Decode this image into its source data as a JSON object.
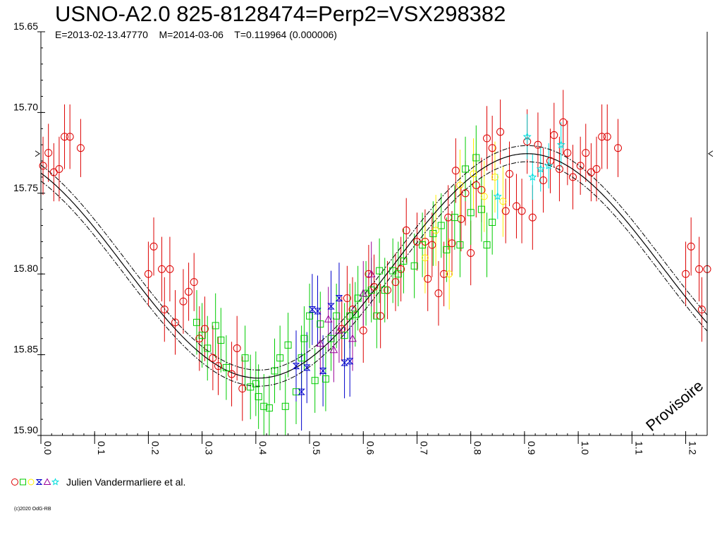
{
  "chart_data": {
    "type": "scatter",
    "title": "USNO-A2.0 825-8128474=Perp2=VSX298382",
    "subtitle": "E=2013-02-13.47770    M=2014-03-06    T=0.119964 (0.000006)",
    "xlim": [
      0.0,
      1.24
    ],
    "ylim": [
      15.65,
      15.9
    ],
    "y_inverted": true,
    "x_ticks": [
      "0.0",
      "0.1",
      "0.2",
      "0.3",
      "0.4",
      "0.5",
      "0.6",
      "0.7",
      "0.8",
      "0.9",
      "1.0",
      "1.1",
      "1.2"
    ],
    "y_ticks": [
      "15.65",
      "15.70",
      "15.75",
      "15.80",
      "15.85",
      "15.90"
    ],
    "grid": false,
    "fit_curve": {
      "mean": 15.795,
      "amplitude": 0.0695,
      "phase_of_minimum": 0.405,
      "band": 0.005
    },
    "watermark": "Provisoire",
    "legend_label": "Julien Vandermarliere et al.",
    "legend_symbols": [
      "circle",
      "square",
      "diamond",
      "hourglass",
      "triangle",
      "star"
    ],
    "copyright": "(c)2020 OdG-RB",
    "series": [
      {
        "symbol": "circle",
        "color": "#dd0000",
        "points": [
          [
            0.004,
            15.733,
            0.018
          ],
          [
            0.014,
            15.725,
            0.018
          ],
          [
            0.024,
            15.737,
            0.018
          ],
          [
            0.034,
            15.735,
            0.02
          ],
          [
            0.044,
            15.715,
            0.02
          ],
          [
            0.054,
            15.715,
            0.02
          ],
          [
            0.074,
            15.722,
            0.018
          ],
          [
            0.2,
            15.8,
            0.02
          ],
          [
            0.21,
            15.783,
            0.018
          ],
          [
            0.225,
            15.797,
            0.02
          ],
          [
            0.23,
            15.822,
            0.02
          ],
          [
            0.24,
            15.797,
            0.02
          ],
          [
            0.25,
            15.83,
            0.02
          ],
          [
            0.265,
            15.817,
            0.02
          ],
          [
            0.275,
            15.811,
            0.018
          ],
          [
            0.285,
            15.805,
            0.018
          ],
          [
            0.295,
            15.84,
            0.02
          ],
          [
            0.305,
            15.834,
            0.02
          ],
          [
            0.32,
            15.852,
            0.02
          ],
          [
            0.33,
            15.857,
            0.018
          ],
          [
            0.355,
            15.862,
            0.02
          ],
          [
            0.365,
            15.846,
            0.02
          ],
          [
            0.375,
            15.871,
            0.02
          ],
          [
            0.56,
            15.834,
            0.02
          ],
          [
            0.57,
            15.815,
            0.02
          ],
          [
            0.58,
            15.822,
            0.02
          ],
          [
            0.6,
            15.835,
            0.02
          ],
          [
            0.61,
            15.8,
            0.018
          ],
          [
            0.62,
            15.808,
            0.02
          ],
          [
            0.632,
            15.826,
            0.02
          ],
          [
            0.645,
            15.81,
            0.018
          ],
          [
            0.66,
            15.805,
            0.018
          ],
          [
            0.67,
            15.797,
            0.02
          ],
          [
            0.68,
            15.773,
            0.02
          ],
          [
            0.7,
            15.78,
            0.018
          ],
          [
            0.715,
            15.78,
            0.02
          ],
          [
            0.72,
            15.803,
            0.02
          ],
          [
            0.728,
            15.782,
            0.02
          ],
          [
            0.74,
            15.812,
            0.02
          ],
          [
            0.75,
            15.8,
            0.02
          ],
          [
            0.758,
            15.765,
            0.02
          ],
          [
            0.765,
            15.781,
            0.02
          ],
          [
            0.772,
            15.736,
            0.02
          ],
          [
            0.782,
            15.766,
            0.02
          ],
          [
            0.79,
            15.75,
            0.02
          ],
          [
            0.8,
            15.787,
            0.02
          ],
          [
            0.81,
            15.745,
            0.02
          ],
          [
            0.82,
            15.748,
            0.02
          ],
          [
            0.83,
            15.716,
            0.02
          ],
          [
            0.84,
            15.722,
            0.02
          ],
          [
            0.855,
            15.712,
            0.02
          ],
          [
            0.865,
            15.761,
            0.02
          ],
          [
            0.872,
            15.738,
            0.02
          ],
          [
            0.885,
            15.758,
            0.02
          ],
          [
            0.895,
            15.761,
            0.02
          ],
          [
            0.905,
            15.718,
            0.02
          ],
          [
            0.915,
            15.765,
            0.02
          ],
          [
            0.925,
            15.72,
            0.02
          ],
          [
            0.935,
            15.742,
            0.02
          ],
          [
            0.948,
            15.73,
            0.02
          ],
          [
            0.955,
            15.714,
            0.02
          ],
          [
            0.965,
            15.735,
            0.02
          ],
          [
            0.972,
            15.706,
            0.02
          ],
          [
            0.98,
            15.725,
            0.02
          ],
          [
            0.99,
            15.74,
            0.02
          ],
          [
            1.004,
            15.733,
            0.018
          ],
          [
            1.014,
            15.725,
            0.018
          ],
          [
            1.024,
            15.737,
            0.018
          ],
          [
            1.034,
            15.735,
            0.02
          ],
          [
            1.044,
            15.715,
            0.02
          ],
          [
            1.054,
            15.715,
            0.02
          ],
          [
            1.074,
            15.722,
            0.018
          ],
          [
            1.2,
            15.8,
            0.02
          ],
          [
            1.21,
            15.783,
            0.018
          ],
          [
            1.225,
            15.797,
            0.02
          ],
          [
            1.23,
            15.822,
            0.02
          ],
          [
            1.24,
            15.797,
            0.02
          ]
        ]
      },
      {
        "symbol": "square",
        "color": "#00cc00",
        "points": [
          [
            0.29,
            15.83,
            0.02
          ],
          [
            0.3,
            15.838,
            0.02
          ],
          [
            0.31,
            15.846,
            0.02
          ],
          [
            0.325,
            15.832,
            0.02
          ],
          [
            0.335,
            15.841,
            0.02
          ],
          [
            0.345,
            15.858,
            0.02
          ],
          [
            0.38,
            15.852,
            0.02
          ],
          [
            0.39,
            15.87,
            0.02
          ],
          [
            0.4,
            15.868,
            0.02
          ],
          [
            0.405,
            15.876,
            0.02
          ],
          [
            0.415,
            15.882,
            0.02
          ],
          [
            0.425,
            15.883,
            0.02
          ],
          [
            0.435,
            15.86,
            0.02
          ],
          [
            0.445,
            15.852,
            0.02
          ],
          [
            0.455,
            15.882,
            0.02
          ],
          [
            0.46,
            15.844,
            0.02
          ],
          [
            0.475,
            15.873,
            0.02
          ],
          [
            0.485,
            15.852,
            0.02
          ],
          [
            0.49,
            15.84,
            0.02
          ],
          [
            0.5,
            15.826,
            0.02
          ],
          [
            0.51,
            15.866,
            0.02
          ],
          [
            0.52,
            15.831,
            0.02
          ],
          [
            0.53,
            15.865,
            0.02
          ],
          [
            0.54,
            15.84,
            0.02
          ],
          [
            0.55,
            15.826,
            0.02
          ],
          [
            0.565,
            15.838,
            0.02
          ],
          [
            0.575,
            15.826,
            0.02
          ],
          [
            0.585,
            15.825,
            0.02
          ],
          [
            0.59,
            15.815,
            0.02
          ],
          [
            0.605,
            15.812,
            0.02
          ],
          [
            0.615,
            15.81,
            0.02
          ],
          [
            0.625,
            15.826,
            0.02
          ],
          [
            0.63,
            15.798,
            0.02
          ],
          [
            0.64,
            15.81,
            0.02
          ],
          [
            0.655,
            15.798,
            0.02
          ],
          [
            0.665,
            15.8,
            0.02
          ],
          [
            0.675,
            15.792,
            0.02
          ],
          [
            0.695,
            15.795,
            0.02
          ],
          [
            0.71,
            15.782,
            0.02
          ],
          [
            0.73,
            15.775,
            0.02
          ],
          [
            0.745,
            15.77,
            0.02
          ],
          [
            0.755,
            15.785,
            0.02
          ],
          [
            0.77,
            15.765,
            0.02
          ],
          [
            0.78,
            15.782,
            0.02
          ],
          [
            0.79,
            15.735,
            0.02
          ],
          [
            0.8,
            15.762,
            0.02
          ],
          [
            0.81,
            15.728,
            0.02
          ],
          [
            0.82,
            15.76,
            0.02
          ],
          [
            0.83,
            15.782,
            0.02
          ],
          [
            0.84,
            15.768,
            0.02
          ]
        ]
      },
      {
        "symbol": "diamond",
        "color": "#ffee00",
        "points": [
          [
            0.715,
            15.79,
            0.022
          ],
          [
            0.735,
            15.773,
            0.022
          ],
          [
            0.76,
            15.8,
            0.022
          ],
          [
            0.78,
            15.745,
            0.022
          ],
          [
            0.805,
            15.738,
            0.022
          ],
          [
            0.825,
            15.752,
            0.022
          ],
          [
            0.845,
            15.74,
            0.022
          ],
          [
            0.86,
            15.755,
            0.022
          ]
        ]
      },
      {
        "symbol": "hourglass",
        "color": "#0000cc",
        "points": [
          [
            0.475,
            15.857,
            0.022
          ],
          [
            0.485,
            15.873,
            0.024
          ],
          [
            0.495,
            15.858,
            0.022
          ],
          [
            0.505,
            15.822,
            0.022
          ],
          [
            0.515,
            15.823,
            0.022
          ],
          [
            0.525,
            15.86,
            0.022
          ],
          [
            0.54,
            15.82,
            0.022
          ],
          [
            0.555,
            15.815,
            0.022
          ],
          [
            0.565,
            15.855,
            0.022
          ],
          [
            0.575,
            15.854,
            0.022
          ]
        ]
      },
      {
        "symbol": "triangle",
        "color": "#990099",
        "points": [
          [
            0.52,
            15.843,
            0.02
          ],
          [
            0.535,
            15.828,
            0.02
          ],
          [
            0.545,
            15.847,
            0.02
          ],
          [
            0.555,
            15.835,
            0.02
          ],
          [
            0.58,
            15.84,
            0.02
          ],
          [
            0.6,
            15.812,
            0.02
          ],
          [
            0.615,
            15.8,
            0.02
          ]
        ]
      },
      {
        "symbol": "star",
        "color": "#00dddd",
        "points": [
          [
            0.905,
            15.715,
            0.014
          ],
          [
            0.915,
            15.74,
            0.014
          ],
          [
            0.93,
            15.735,
            0.014
          ],
          [
            0.945,
            15.733,
            0.014
          ],
          [
            0.968,
            15.72,
            0.014
          ],
          [
            0.85,
            15.752,
            0.014
          ]
        ]
      }
    ]
  }
}
